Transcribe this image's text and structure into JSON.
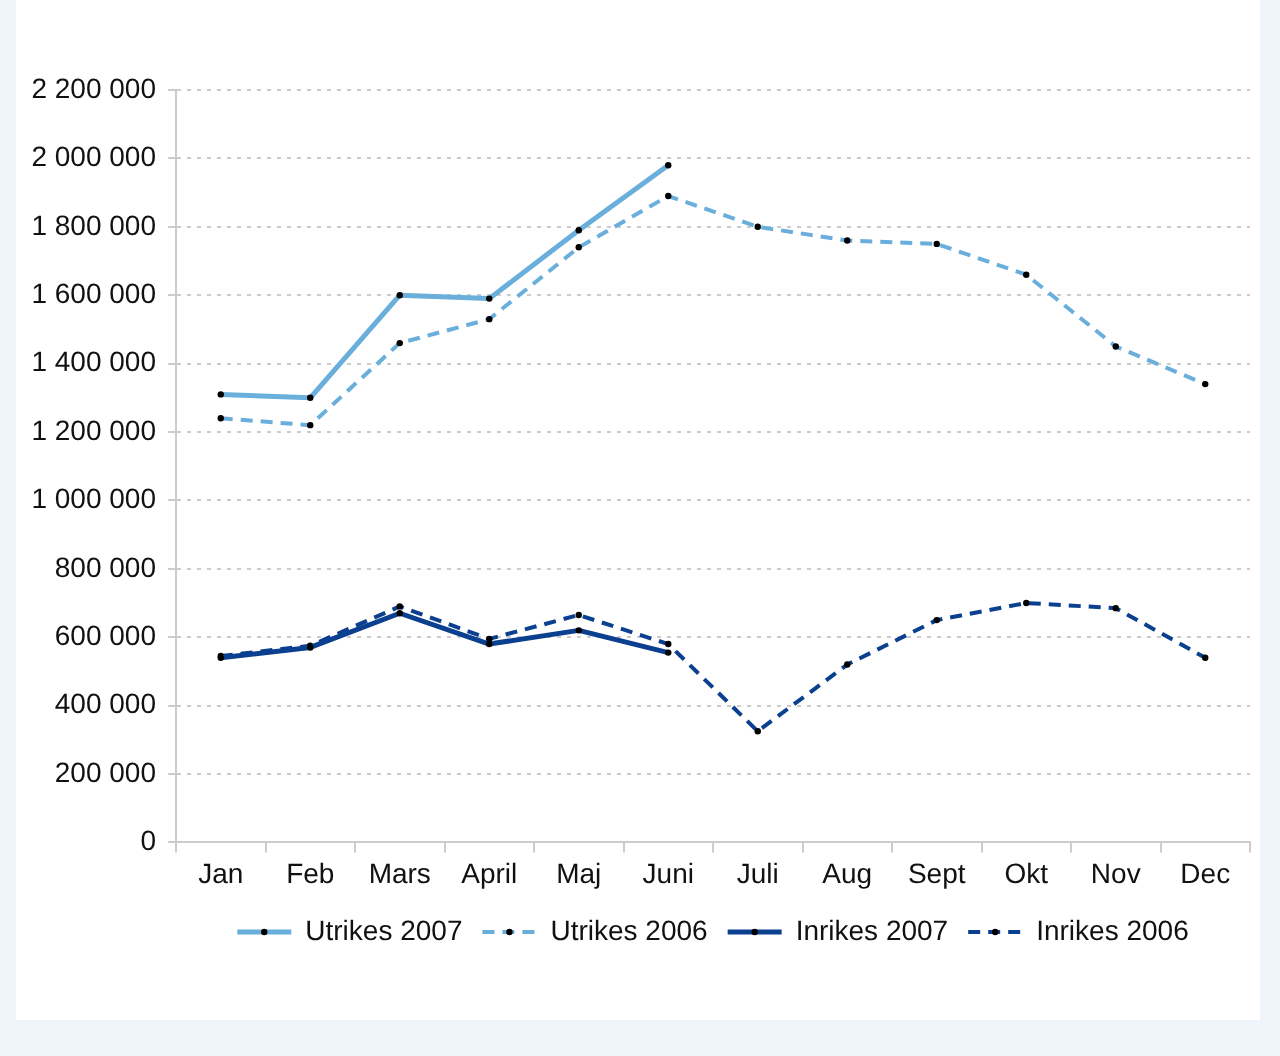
{
  "chart_data": {
    "type": "line",
    "categories": [
      "Jan",
      "Feb",
      "Mars",
      "April",
      "Maj",
      "Juni",
      "Juli",
      "Aug",
      "Sept",
      "Okt",
      "Nov",
      "Dec"
    ],
    "series": [
      {
        "name": "Utrikes 2007",
        "color": "#6aaedb",
        "line_style": "solid",
        "values": [
          1310000,
          1300000,
          1600000,
          1590000,
          1790000,
          1980000,
          null,
          null,
          null,
          null,
          null,
          null
        ]
      },
      {
        "name": "Utrikes 2006",
        "color": "#6aaedb",
        "line_style": "dashed",
        "values": [
          1240000,
          1220000,
          1460000,
          1530000,
          1740000,
          1890000,
          1800000,
          1760000,
          1750000,
          1660000,
          1450000,
          1340000
        ]
      },
      {
        "name": "Inrikes 2007",
        "color": "#0b3f8f",
        "line_style": "solid",
        "values": [
          540000,
          570000,
          670000,
          580000,
          620000,
          555000,
          null,
          null,
          null,
          null,
          null,
          null
        ]
      },
      {
        "name": "Inrikes 2006",
        "color": "#0b3f8f",
        "line_style": "dashed",
        "values": [
          545000,
          575000,
          690000,
          595000,
          665000,
          580000,
          325000,
          520000,
          650000,
          700000,
          685000,
          540000
        ]
      }
    ],
    "ylim": [
      0,
      2200000
    ],
    "yticks": [
      {
        "value": 0,
        "label": "0"
      },
      {
        "value": 200000,
        "label": "200 000"
      },
      {
        "value": 400000,
        "label": "400 000"
      },
      {
        "value": 600000,
        "label": "600 000"
      },
      {
        "value": 800000,
        "label": "800 000"
      },
      {
        "value": 1000000,
        "label": "1 000 000"
      },
      {
        "value": 1200000,
        "label": "1 200 000"
      },
      {
        "value": 1400000,
        "label": "1 400 000"
      },
      {
        "value": 1600000,
        "label": "1 600 000"
      },
      {
        "value": 1800000,
        "label": "1 800 000"
      },
      {
        "value": 2000000,
        "label": "2 000 000"
      },
      {
        "value": 2200000,
        "label": "2 200 000"
      }
    ],
    "grid": "y",
    "legend": "bottom",
    "marker": "circle"
  }
}
